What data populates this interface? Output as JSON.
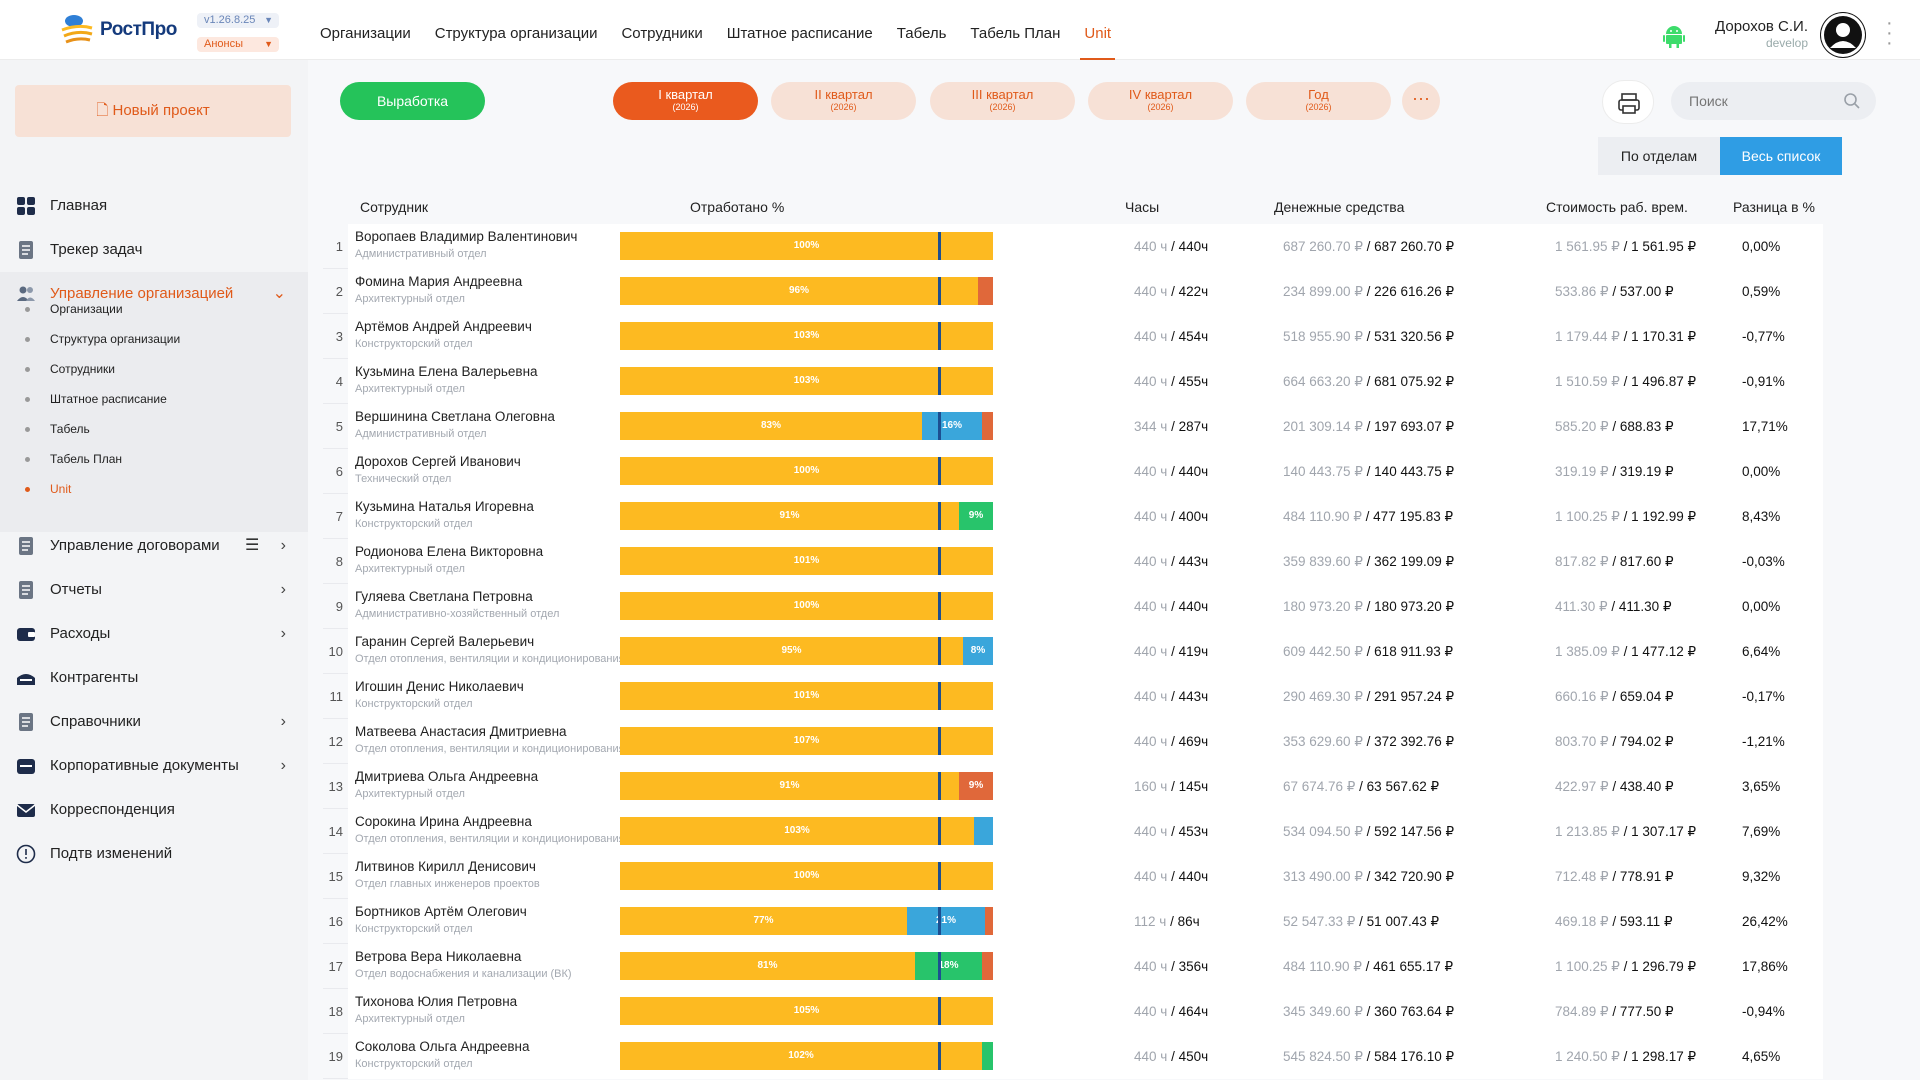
{
  "app": {
    "brand": "РостПро",
    "version": "v1.26.8.25",
    "announces": "Анонсы"
  },
  "nav": [
    "Организации",
    "Структура организации",
    "Сотрудники",
    "Штатное расписание",
    "Табель",
    "Табель План",
    "Unit"
  ],
  "nav_active": 6,
  "user": {
    "name": "Дорохов С.И.",
    "role": "develop"
  },
  "sidebar": {
    "new_project": "Новый проект",
    "items": [
      {
        "label": "Главная",
        "icon": "grid-icon"
      },
      {
        "label": "Трекер задач",
        "icon": "document-icon"
      },
      {
        "label": "Управление организацией",
        "icon": "users-icon",
        "open": true
      },
      {
        "label": "Управление договорами",
        "icon": "document-icon",
        "arrow": true,
        "list": true
      },
      {
        "label": "Отчеты",
        "icon": "document-icon",
        "arrow": true
      },
      {
        "label": "Расходы",
        "icon": "wallet-icon",
        "arrow": true
      },
      {
        "label": "Контрагенты",
        "icon": "building-icon"
      },
      {
        "label": "Справочники",
        "icon": "document-icon",
        "arrow": true
      },
      {
        "label": "Корпоративные документы",
        "icon": "folder-icon",
        "arrow": true
      },
      {
        "label": "Корреспонденция",
        "icon": "mail-icon"
      },
      {
        "label": "Подтв изменений",
        "icon": "alert-icon"
      }
    ],
    "subitems": [
      "Организации",
      "Структура организации",
      "Сотрудники",
      "Штатное расписание",
      "Табель",
      "Табель План",
      "Unit"
    ],
    "sub_active": 6
  },
  "toolbar": {
    "vyrabotka": "Выработка",
    "quarters": [
      {
        "label": "I квартал",
        "year": "(2026)",
        "active": true
      },
      {
        "label": "II квартал",
        "year": "(2026)"
      },
      {
        "label": "III квартал",
        "year": "(2026)"
      },
      {
        "label": "IV квартал",
        "year": "(2026)"
      },
      {
        "label": "Год",
        "year": "(2026)"
      }
    ],
    "more": "···",
    "search_placeholder": "Поиск",
    "by_dept": "По отделам",
    "all_list": "Весь список"
  },
  "columns": {
    "employee": "Сотрудник",
    "worked": "Отработано %",
    "hours": "Часы",
    "money": "Денежные средства",
    "cost": "Стоимость раб. врем.",
    "diff": "Разница в %"
  },
  "colors": {
    "accent": "#e05a1a",
    "green": "#25c35a",
    "blue": "#2f9de4",
    "bar": "#fdba21",
    "over": "#e0683a",
    "under_blue": "#3aa6db",
    "under_green": "#28c46b"
  },
  "rows": [
    {
      "n": "1",
      "name": "Воропаев Владимир Валентинович",
      "dept": "Административный отдел",
      "main": 100,
      "label": "100%",
      "extra_type": "",
      "extra": 0,
      "extra_label": "",
      "hours_plan": "440 ч",
      "hours_fact": "440ч",
      "money_plan": "687 260.70 ₽",
      "money_fact": "687 260.70 ₽",
      "cost_plan": "1 561.95 ₽",
      "cost_fact": "1 561.95 ₽",
      "diff": "0,00%"
    },
    {
      "n": "2",
      "name": "Фомина Мария Андреевна",
      "dept": "Архитектурный отдел",
      "main": 96,
      "label": "96%",
      "extra_type": "over",
      "extra": 4,
      "extra_label": "",
      "hours_plan": "440 ч",
      "hours_fact": "422ч",
      "money_plan": "234 899.00 ₽",
      "money_fact": "226 616.26 ₽",
      "cost_plan": "533.86 ₽",
      "cost_fact": "537.00 ₽",
      "diff": "0,59%"
    },
    {
      "n": "3",
      "name": "Артёмов Андрей Андреевич",
      "dept": "Конструкторский отдел",
      "main": 100,
      "label": "103%",
      "extra_type": "",
      "extra": 0,
      "extra_label": "",
      "hours_plan": "440 ч",
      "hours_fact": "454ч",
      "money_plan": "518 955.90 ₽",
      "money_fact": "531 320.56 ₽",
      "cost_plan": "1 179.44 ₽",
      "cost_fact": "1 170.31 ₽",
      "diff": "-0,77%"
    },
    {
      "n": "4",
      "name": "Кузьмина Елена Валерьевна",
      "dept": "Архитектурный отдел",
      "main": 100,
      "label": "103%",
      "extra_type": "",
      "extra": 0,
      "extra_label": "",
      "hours_plan": "440 ч",
      "hours_fact": "455ч",
      "money_plan": "664 663.20 ₽",
      "money_fact": "681 075.92 ₽",
      "cost_plan": "1 510.59 ₽",
      "cost_fact": "1 496.87 ₽",
      "diff": "-0,91%"
    },
    {
      "n": "5",
      "name": "Вершинина Светлана Олеговна",
      "dept": "Административный отдел",
      "main": 81,
      "label": "83%",
      "extra_type": "blue",
      "extra": 16,
      "extra_label": "16%",
      "tail": 3,
      "hours_plan": "344 ч",
      "hours_fact": "287ч",
      "money_plan": "201 309.14 ₽",
      "money_fact": "197 693.07 ₽",
      "cost_plan": "585.20 ₽",
      "cost_fact": "688.83 ₽",
      "diff": "17,71%"
    },
    {
      "n": "6",
      "name": "Дорохов Сергей Иванович",
      "dept": "Технический отдел",
      "main": 100,
      "label": "100%",
      "extra_type": "",
      "extra": 0,
      "extra_label": "",
      "hours_plan": "440 ч",
      "hours_fact": "440ч",
      "money_plan": "140 443.75 ₽",
      "money_fact": "140 443.75 ₽",
      "cost_plan": "319.19 ₽",
      "cost_fact": "319.19 ₽",
      "diff": "0,00%"
    },
    {
      "n": "7",
      "name": "Кузьмина Наталья Игоревна",
      "dept": "Конструкторский отдел",
      "main": 91,
      "label": "91%",
      "extra_type": "green",
      "extra": 9,
      "extra_label": "9%",
      "hours_plan": "440 ч",
      "hours_fact": "400ч",
      "money_plan": "484 110.90 ₽",
      "money_fact": "477 195.83 ₽",
      "cost_plan": "1 100.25 ₽",
      "cost_fact": "1 192.99 ₽",
      "diff": "8,43%"
    },
    {
      "n": "8",
      "name": "Родионова Елена Викторовна",
      "dept": "Архитектурный отдел",
      "main": 100,
      "label": "101%",
      "extra_type": "over",
      "extra": 0.6,
      "extra_label": "",
      "hours_plan": "440 ч",
      "hours_fact": "443ч",
      "money_plan": "359 839.60 ₽",
      "money_fact": "362 199.09 ₽",
      "cost_plan": "817.82 ₽",
      "cost_fact": "817.60 ₽",
      "diff": "-0,03%"
    },
    {
      "n": "9",
      "name": "Гуляева Светлана Петровна",
      "dept": "Административно-хозяйственный отдел",
      "main": 100,
      "label": "100%",
      "extra_type": "",
      "extra": 0,
      "extra_label": "",
      "hours_plan": "440 ч",
      "hours_fact": "440ч",
      "money_plan": "180 973.20 ₽",
      "money_fact": "180 973.20 ₽",
      "cost_plan": "411.30 ₽",
      "cost_fact": "411.30 ₽",
      "diff": "0,00%"
    },
    {
      "n": "10",
      "name": "Гаранин Сергей Валерьевич",
      "dept": "Отдел отопления, вентиляции и кондиционирования",
      "main": 92,
      "label": "95%",
      "extra_type": "blue",
      "extra": 8,
      "extra_label": "8%",
      "hours_plan": "440 ч",
      "hours_fact": "419ч",
      "money_plan": "609 442.50 ₽",
      "money_fact": "618 911.93 ₽",
      "cost_plan": "1 385.09 ₽",
      "cost_fact": "1 477.12 ₽",
      "diff": "6,64%"
    },
    {
      "n": "11",
      "name": "Игошин Денис Николаевич",
      "dept": "Конструкторский отдел",
      "main": 100,
      "label": "101%",
      "extra_type": "",
      "extra": 0,
      "extra_label": "",
      "hours_plan": "440 ч",
      "hours_fact": "443ч",
      "money_plan": "290 469.30 ₽",
      "money_fact": "291 957.24 ₽",
      "cost_plan": "660.16 ₽",
      "cost_fact": "659.04 ₽",
      "diff": "-0,17%"
    },
    {
      "n": "12",
      "name": "Матвеева Анастасия Дмитриевна",
      "dept": "Отдел отопления, вентиляции и кондиционирования",
      "main": 100,
      "label": "107%",
      "extra_type": "",
      "extra": 0,
      "extra_label": "",
      "hours_plan": "440 ч",
      "hours_fact": "469ч",
      "money_plan": "353 629.60 ₽",
      "money_fact": "372 392.76 ₽",
      "cost_plan": "803.70 ₽",
      "cost_fact": "794.02 ₽",
      "diff": "-1,21%"
    },
    {
      "n": "13",
      "name": "Дмитриева Ольга Андреевна",
      "dept": "Архитектурный отдел",
      "main": 91,
      "label": "91%",
      "extra_type": "over",
      "extra": 9,
      "extra_label": "9%",
      "hours_plan": "160 ч",
      "hours_fact": "145ч",
      "money_plan": "67 674.76 ₽",
      "money_fact": "63 567.62 ₽",
      "cost_plan": "422.97 ₽",
      "cost_fact": "438.40 ₽",
      "diff": "3,65%"
    },
    {
      "n": "14",
      "name": "Сорокина Ирина Андреевна",
      "dept": "Отдел отопления, вентиляции и кондиционирования",
      "main": 95,
      "label": "103%",
      "extra_type": "blue",
      "extra": 5,
      "extra_label": "",
      "hours_plan": "440 ч",
      "hours_fact": "453ч",
      "money_plan": "534 094.50 ₽",
      "money_fact": "592 147.56 ₽",
      "cost_plan": "1 213.85 ₽",
      "cost_fact": "1 307.17 ₽",
      "diff": "7,69%"
    },
    {
      "n": "15",
      "name": "Литвинов Кирилл Денисович",
      "dept": "Отдел главных инженеров проектов",
      "main": 100,
      "label": "100%",
      "extra_type": "",
      "extra": 0,
      "extra_label": "",
      "hours_plan": "440 ч",
      "hours_fact": "440ч",
      "money_plan": "313 490.00 ₽",
      "money_fact": "342 720.90 ₽",
      "cost_plan": "712.48 ₽",
      "cost_fact": "778.91 ₽",
      "diff": "9,32%"
    },
    {
      "n": "16",
      "name": "Бортников Артём Олегович",
      "dept": "Конструкторский отдел",
      "main": 77,
      "label": "77%",
      "extra_type": "blue",
      "extra": 21,
      "extra_label": "21%",
      "tail": 2,
      "hours_plan": "112 ч",
      "hours_fact": "86ч",
      "money_plan": "52 547.33 ₽",
      "money_fact": "51 007.43 ₽",
      "cost_plan": "469.18 ₽",
      "cost_fact": "593.11 ₽",
      "diff": "26,42%"
    },
    {
      "n": "17",
      "name": "Ветрова Вера Николаевна",
      "dept": "Отдел водоснабжения и канализации (ВК)",
      "main": 79,
      "label": "81%",
      "extra_type": "green",
      "extra": 18,
      "extra_label": "18%",
      "tail": 3,
      "hours_plan": "440 ч",
      "hours_fact": "356ч",
      "money_plan": "484 110.90 ₽",
      "money_fact": "461 655.17 ₽",
      "cost_plan": "1 100.25 ₽",
      "cost_fact": "1 296.79 ₽",
      "diff": "17,86%"
    },
    {
      "n": "18",
      "name": "Тихонова Юлия Петровна",
      "dept": "Архитектурный отдел",
      "main": 100,
      "label": "105%",
      "extra_type": "",
      "extra": 0,
      "extra_label": "",
      "hours_plan": "440 ч",
      "hours_fact": "464ч",
      "money_plan": "345 349.60 ₽",
      "money_fact": "360 763.64 ₽",
      "cost_plan": "784.89 ₽",
      "cost_fact": "777.50 ₽",
      "diff": "-0,94%"
    },
    {
      "n": "19",
      "name": "Соколова Ольга Андреевна",
      "dept": "Конструкторский отдел",
      "main": 97,
      "label": "102%",
      "extra_type": "green",
      "extra": 3,
      "extra_label": "",
      "hours_plan": "440 ч",
      "hours_fact": "450ч",
      "money_plan": "545 824.50 ₽",
      "money_fact": "584 176.10 ₽",
      "cost_plan": "1 240.50 ₽",
      "cost_fact": "1 298.17 ₽",
      "diff": "4,65%"
    }
  ]
}
